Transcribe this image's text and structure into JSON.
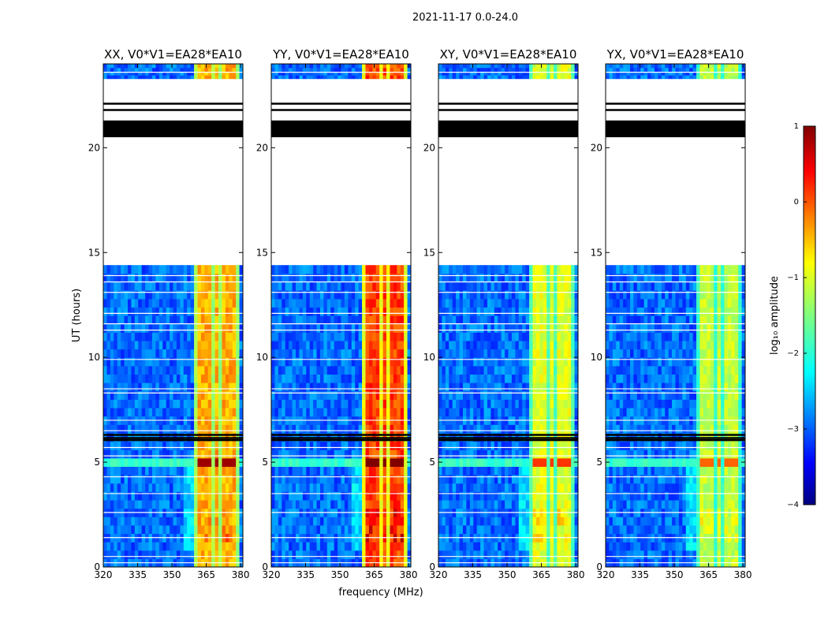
{
  "chart_data": {
    "type": "heatmap",
    "suptitle": "2021-11-17 0.0-24.0",
    "xlabel": "frequency (MHz)",
    "ylabel": "UT (hours)",
    "xlim": [
      320,
      381
    ],
    "ylim": [
      0,
      24
    ],
    "xticks": [
      "320",
      "335",
      "350",
      "365",
      "380"
    ],
    "yticks": [
      "0",
      "5",
      "10",
      "15",
      "20"
    ],
    "panels": [
      {
        "title": "XX, V0*V1=EA28*EA10"
      },
      {
        "title": "YY, V0*V1=EA28*EA10"
      },
      {
        "title": "XY, V0*V1=EA28*EA10"
      },
      {
        "title": "YX, V0*V1=EA28*EA10"
      }
    ],
    "panel_intensity": [
      1.0,
      1.15,
      0.85,
      0.8
    ],
    "colorbar": {
      "label": "log₁₀ amplitude",
      "range": [
        -4,
        1
      ],
      "ticks": [
        "1",
        "0",
        "−1",
        "−2",
        "−3",
        "−4"
      ],
      "colormap": "jet"
    },
    "bright_band_mhz": [
      360,
      379
    ],
    "gap_hours": [
      14.4,
      23.3
    ],
    "black_flag_hours": [
      20.5,
      21.3
    ],
    "bright_hours": [
      4.5,
      4.9
    ]
  }
}
